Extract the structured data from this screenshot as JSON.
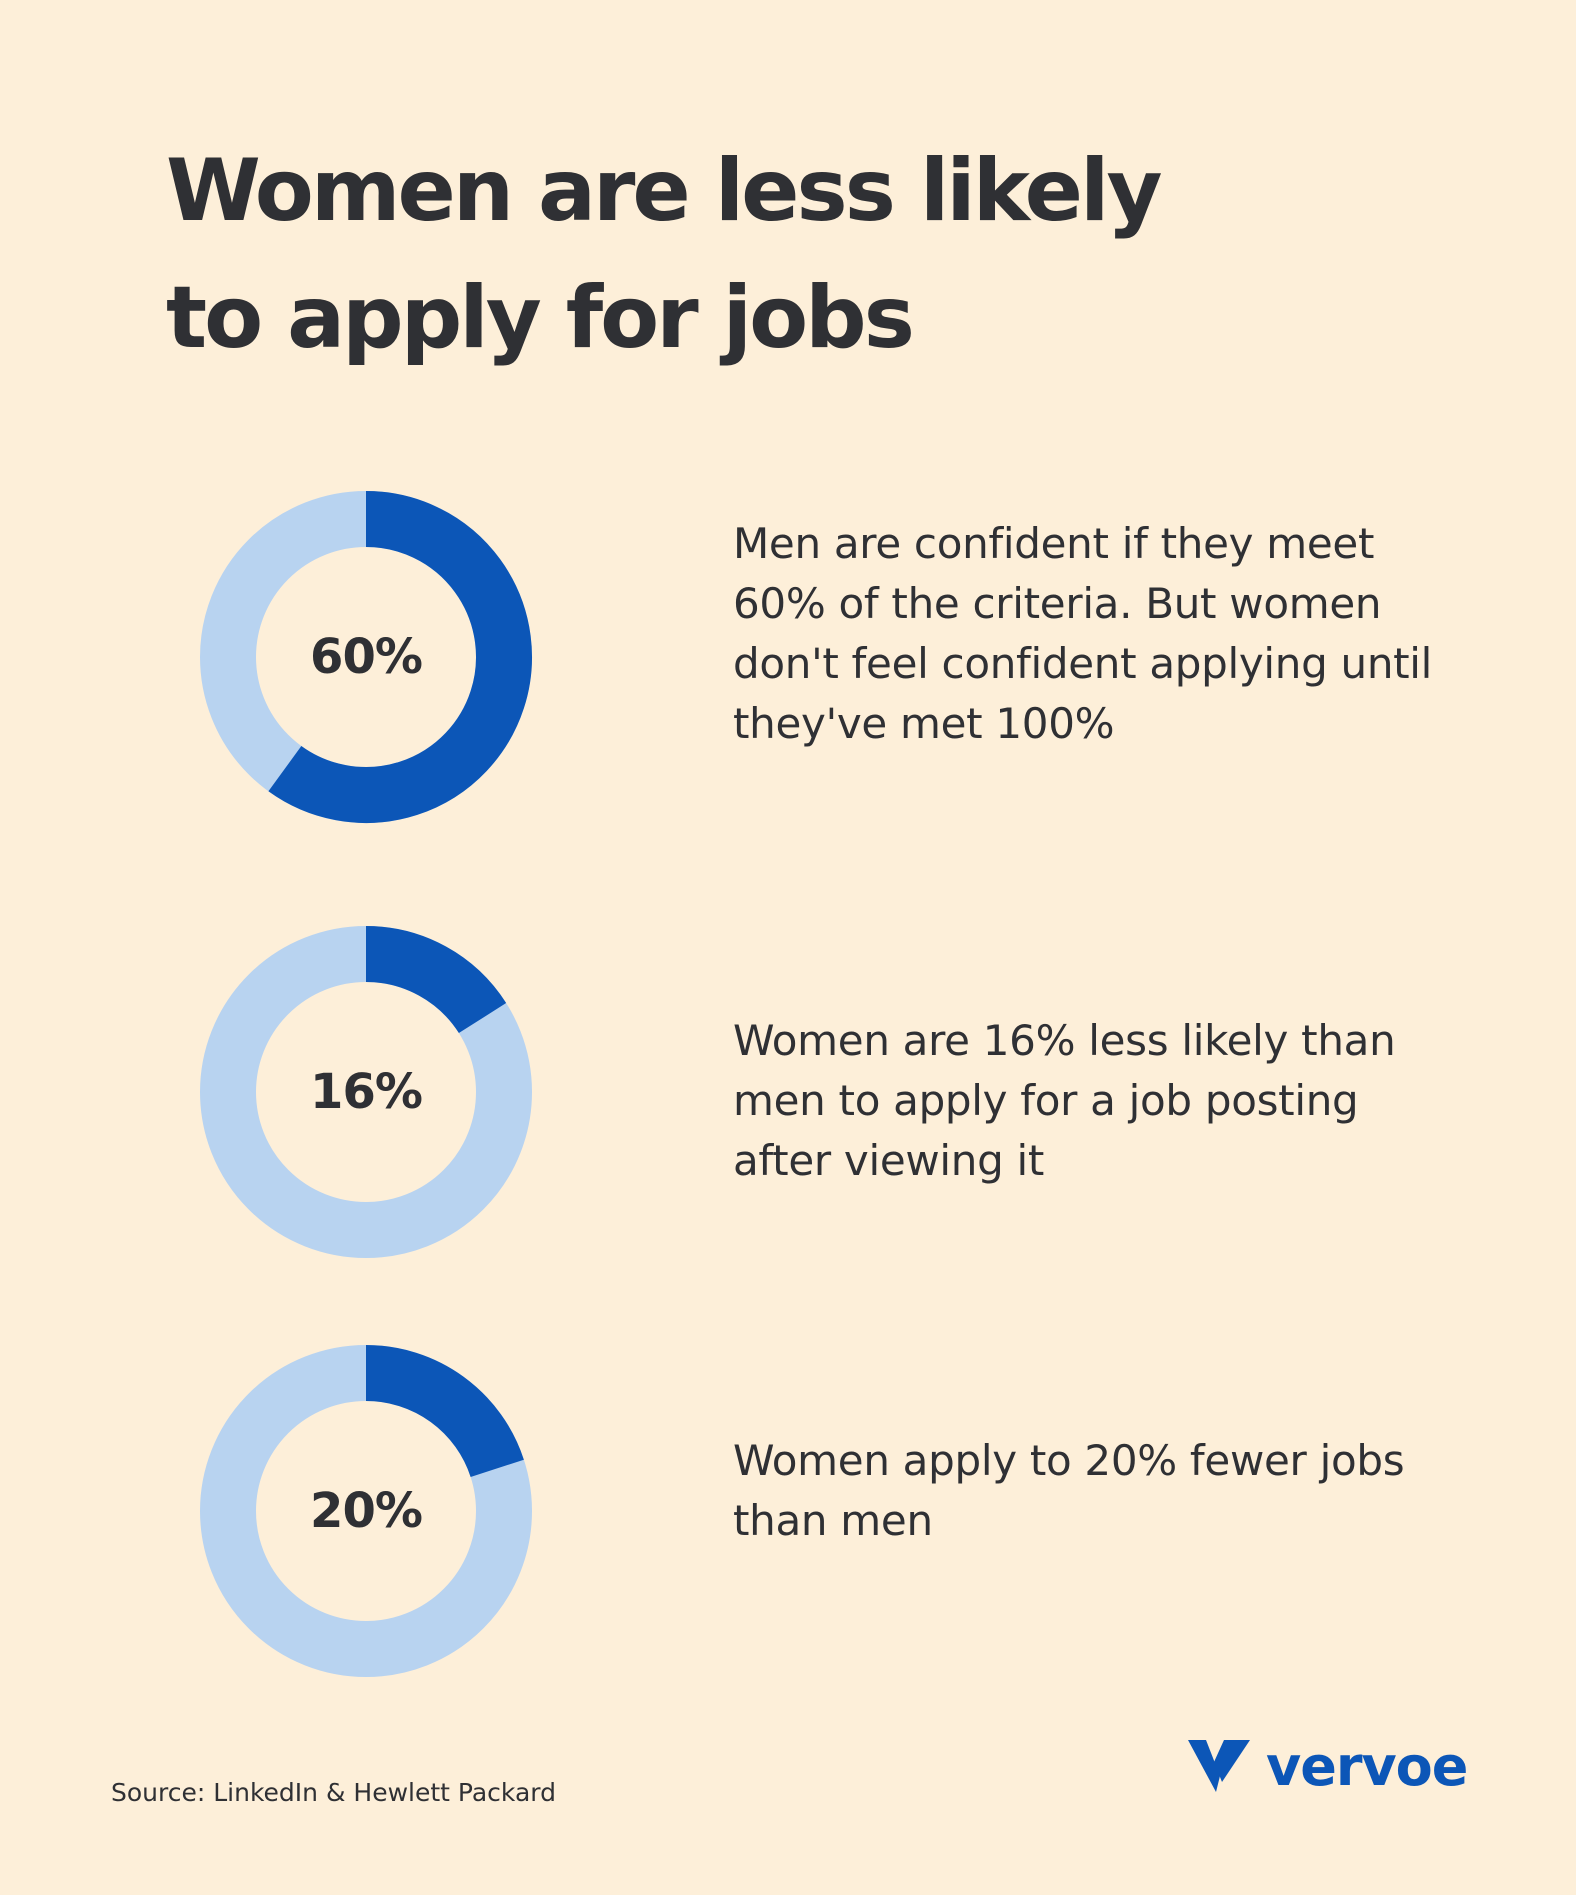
{
  "title_line1": "Women are less likely",
  "title_line2": "to apply for jobs",
  "colors": {
    "background": "#fdefd9",
    "accent": "#0c56b7",
    "ring_track": "#b8d3f0",
    "text": "#2f3034"
  },
  "chart_data": [
    {
      "type": "pie",
      "variant": "donut",
      "label": "60%",
      "value": 60,
      "max": 100,
      "description": "Men are confident if they meet 60% of the criteria. But women don't feel confident applying until they've met 100%"
    },
    {
      "type": "pie",
      "variant": "donut",
      "label": "16%",
      "value": 16,
      "max": 100,
      "description": "Women are 16% less likely than men to apply for a job posting after viewing it"
    },
    {
      "type": "pie",
      "variant": "donut",
      "label": "20%",
      "value": 20,
      "max": 100,
      "description": "Women apply to 20% fewer jobs than men"
    }
  ],
  "source": "Source: LinkedIn & Hewlett Packard",
  "brand": {
    "name": "vervoe",
    "logo_icon": "vervoe-v-logo-icon"
  }
}
